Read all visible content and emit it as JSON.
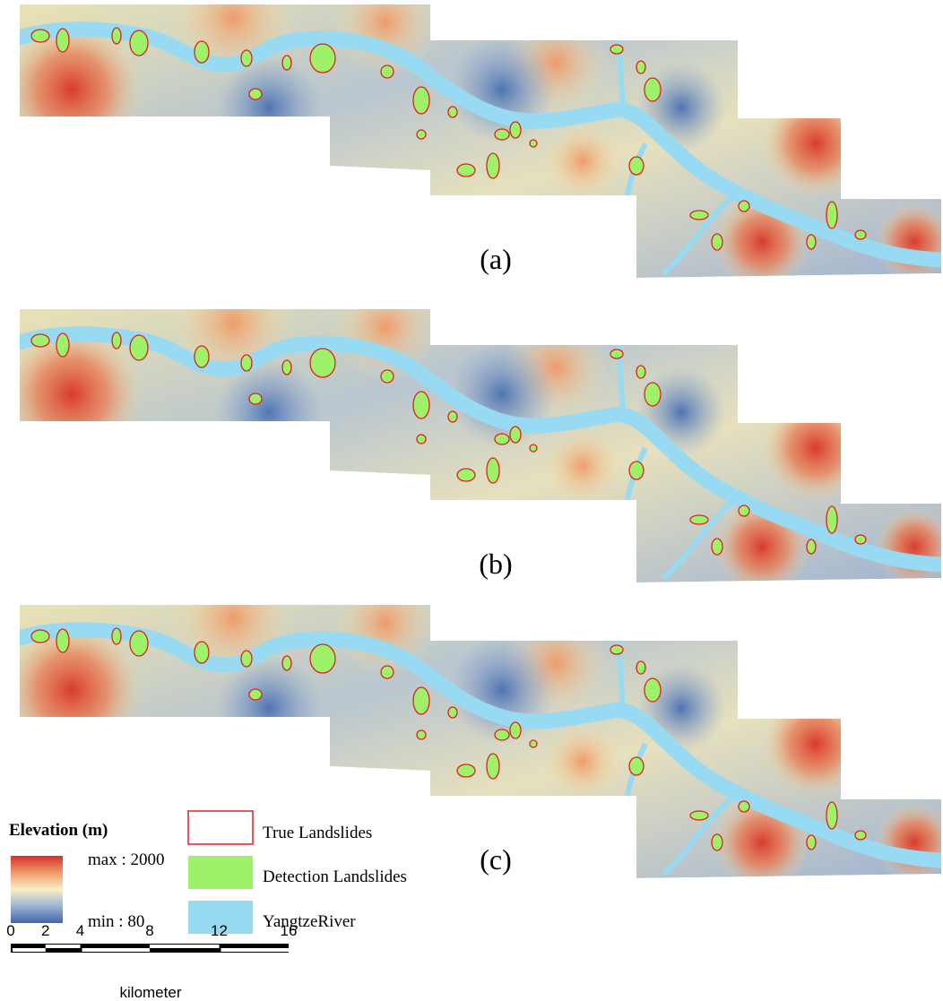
{
  "panels": [
    {
      "label": "(a)"
    },
    {
      "label": "(b)"
    },
    {
      "label": "(c)"
    }
  ],
  "legend": {
    "title": "Elevation (m)",
    "max_label": "max : 2000",
    "min_label": "min : 80",
    "items": [
      "True Landslides",
      "Detection Landslides",
      "YangtzeRiver"
    ]
  },
  "scale_bar": {
    "ticks": [
      "0",
      "2",
      "4",
      "8",
      "12",
      "16"
    ],
    "unit": "kilometer"
  }
}
